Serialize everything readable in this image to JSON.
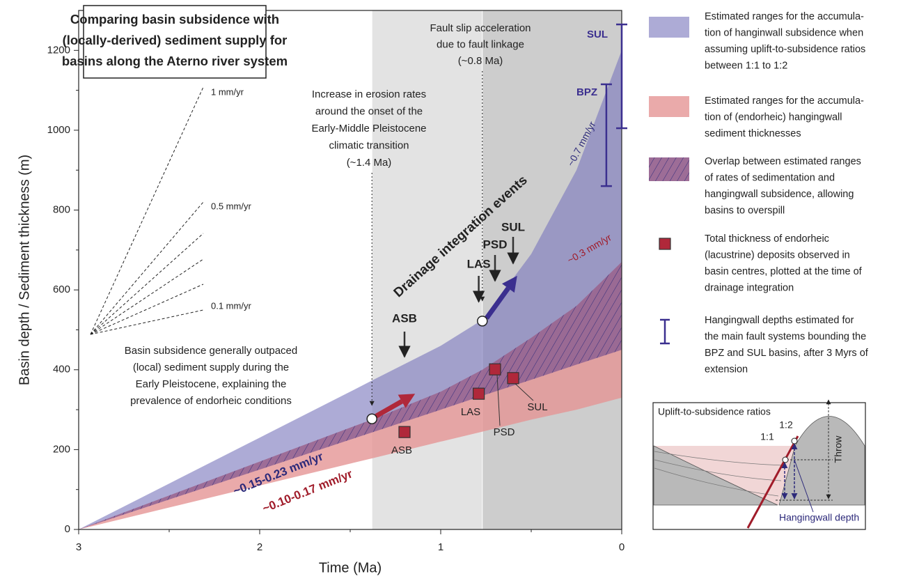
{
  "chart_data": {
    "type": "band",
    "title": [
      "Comparing basin subsidence with",
      "(locally-derived) sediment supply for",
      "basins along the Aterno river system"
    ],
    "xlabel": "Time (Ma)",
    "ylabel": "Basin depth / Sediment thickness (m)",
    "xlim": [
      3,
      0
    ],
    "ylim": [
      0,
      1300
    ],
    "xticks": [
      3,
      2,
      1,
      0
    ],
    "x_minor_ticks": [
      2.5,
      1.5,
      0.5
    ],
    "yticks": [
      0,
      200,
      400,
      600,
      800,
      1000,
      1200
    ],
    "y_minor_ticks": [
      100,
      300,
      500,
      700,
      900,
      1100
    ],
    "grid": false,
    "periods": [
      {
        "from": 1.38,
        "to": 0.77,
        "color": "#e3e3e3"
      },
      {
        "from": 0.77,
        "to": 0,
        "color": "#cdcdcd"
      }
    ],
    "x": [
      3,
      2.5,
      2,
      1.5,
      1.38,
      1,
      0.77,
      0.5,
      0.25,
      0
    ],
    "bands": [
      {
        "color": "#e59595",
        "upper": [
          0,
          85,
          170,
          255,
          275,
          345,
          400,
          480,
          560,
          670
        ],
        "lower": [
          0,
          55,
          110,
          165,
          178,
          220,
          245,
          275,
          300,
          330
        ]
      },
      {
        "color": "#7b78bd",
        "upper": [
          0,
          115,
          230,
          345,
          373,
          460,
          525,
          690,
          900,
          1200
        ],
        "lower": [
          0,
          75,
          150,
          225,
          243,
          300,
          335,
          375,
          413,
          450
        ]
      }
    ],
    "overlap_color": "#2d2a7a",
    "points": {
      "names": [
        "ASB",
        "LAS",
        "PSD",
        "SUL"
      ],
      "x": [
        1.2,
        0.79,
        0.7,
        0.6
      ],
      "values": [
        244,
        340,
        401,
        379
      ],
      "color": "#b0283a"
    },
    "ranges": {
      "names": [
        "SUL",
        "BPZ"
      ],
      "x": [
        0,
        0.085
      ],
      "low": [
        1005,
        860
      ],
      "high": [
        1265,
        1115
      ],
      "color": "#3b2f8f"
    },
    "markers": {
      "x": [
        1.38,
        0.77
      ],
      "values": [
        277,
        522
      ]
    },
    "rate_labels": [
      {
        "text": "~0.15-0.23 mm/yr",
        "color": "#2d2a7a"
      },
      {
        "text": "~0.10-0.17 mm/yr",
        "color": "#a01c2a"
      },
      {
        "text": "~0.7 mm/yr",
        "color": "#2d2a7a"
      },
      {
        "text": "~0.3 mm/yr",
        "color": "#a01c2a"
      }
    ],
    "events_label": "Drainage integration events",
    "annotations": {
      "erosion": [
        "Increase in erosion rates",
        "around the onset of the",
        "Early-Middle Pleistocene",
        "climatic transition",
        "(~1.4 Ma)"
      ],
      "fault": [
        "Fault slip acceleration",
        "due to fault linkage",
        "(~0.8 Ma)"
      ],
      "basin": [
        "Basin subsidence generally outpaced",
        "(local) sediment supply during the",
        "Early Pleistocene, explaining the",
        "prevalence of endorheic conditions"
      ]
    },
    "fan_labels": [
      "1 mm/yr",
      "0.5 mm/yr",
      "0.1 mm/yr"
    ]
  },
  "legend": [
    [
      "Estimated ranges for the accumula-",
      "tion of hanginwall subsidence when",
      "assuming uplift-to-subsidence ratios",
      "between 1:1 to 1:2"
    ],
    [
      "Estimated ranges for the accumula-",
      "tion of (endorheic) hangingwall",
      "sediment thicknesses"
    ],
    [
      "Overlap between estimated ranges",
      "of rates of sedimentation and",
      "hangingwall subsidence, allowing",
      "basins to overspill"
    ],
    [
      "Total thickness of endorheic",
      "(lacustrine) deposits observed in",
      "basin centres, plotted at the time of",
      "drainage integration"
    ],
    [
      "Hangingwall depths estimated for",
      "the main fault systems bounding the",
      "BPZ and SUL basins, after 3 Myrs of",
      "extension"
    ]
  ],
  "inset": {
    "title": "Uplift-to-subsidence ratios",
    "ratio_1_1": "1:1",
    "ratio_1_2": "1:2",
    "throw": "Throw",
    "hangingwall_depth": "Hangingwall depth"
  }
}
